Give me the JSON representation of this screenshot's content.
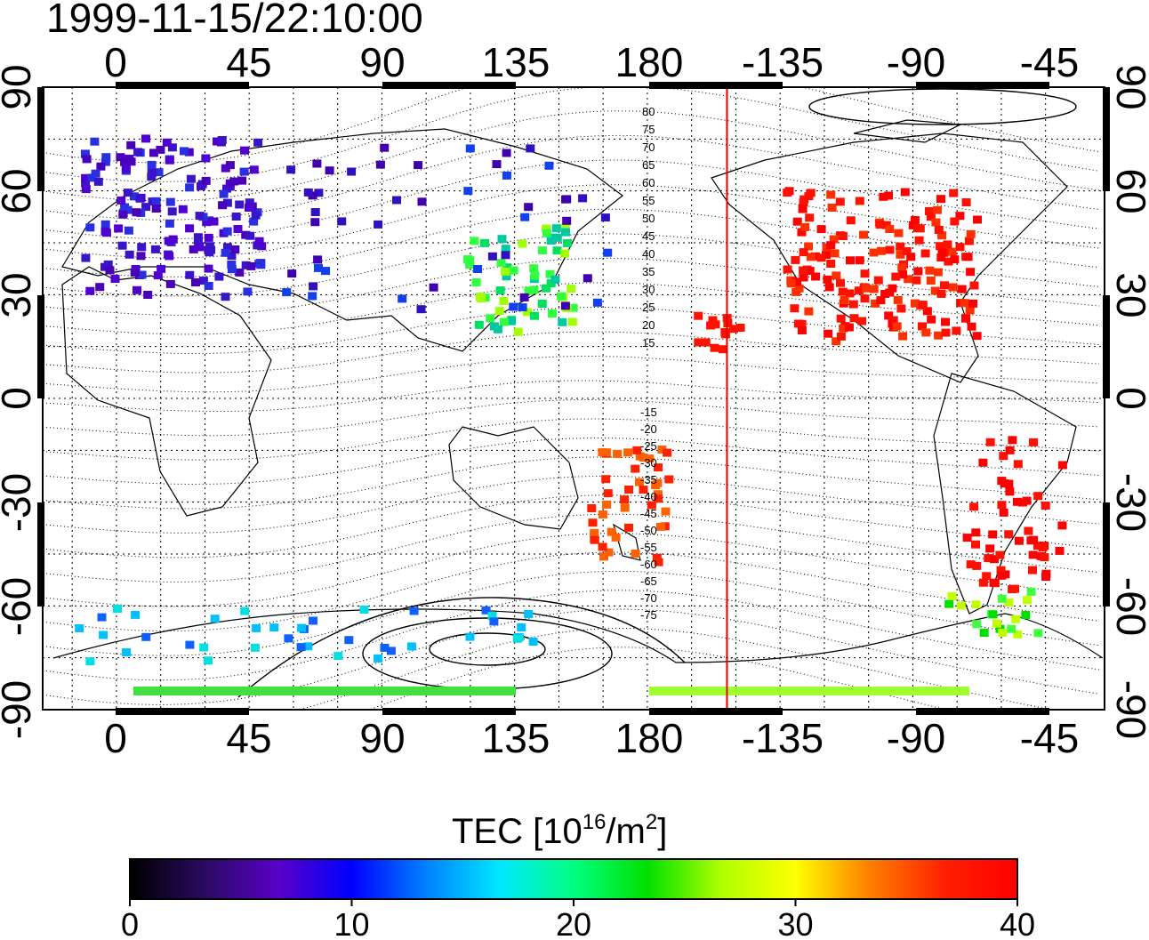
{
  "timestamp": "1999-11-15/22:10:00",
  "map": {
    "top_lon_ticks": [
      "0",
      "45",
      "90",
      "135",
      "180",
      "-135",
      "-90",
      "-45"
    ],
    "bottom_lon_ticks": [
      "0",
      "45",
      "90",
      "135",
      "180",
      "-135",
      "-90",
      "-45"
    ],
    "left_lat_ticks": [
      "90",
      "60",
      "30",
      "0",
      "-30",
      "-60",
      "-90"
    ],
    "right_lat_ticks": [
      "90",
      "60",
      "30",
      "0",
      "-30",
      "-60",
      "-90"
    ],
    "contour_labels_north": [
      "80",
      "75",
      "70",
      "65",
      "60",
      "55",
      "50",
      "45",
      "40",
      "35",
      "30",
      "25",
      "20",
      "15"
    ],
    "contour_labels_south": [
      "-15",
      "-20",
      "-25",
      "-30",
      "-35",
      "-40",
      "-45",
      "-50",
      "-55",
      "-60",
      "-65",
      "-70",
      "-75"
    ],
    "terminator_lon": -153,
    "terminator_color": "#e00000"
  },
  "colorbar": {
    "title": "TEC  [10",
    "title_sup1": "16",
    "title_mid": "/m",
    "title_sup2": "2",
    "title_end": "]",
    "tick_labels": [
      "0",
      "10",
      "20",
      "30",
      "40"
    ],
    "min": 0,
    "max": 40,
    "colors": [
      "#000000",
      "#2a0a60",
      "#5a00c8",
      "#0000ff",
      "#0080ff",
      "#00e8ff",
      "#00ff80",
      "#00e000",
      "#b0ff00",
      "#ffff00",
      "#ff8000",
      "#ff2000",
      "#ff0000"
    ]
  }
}
